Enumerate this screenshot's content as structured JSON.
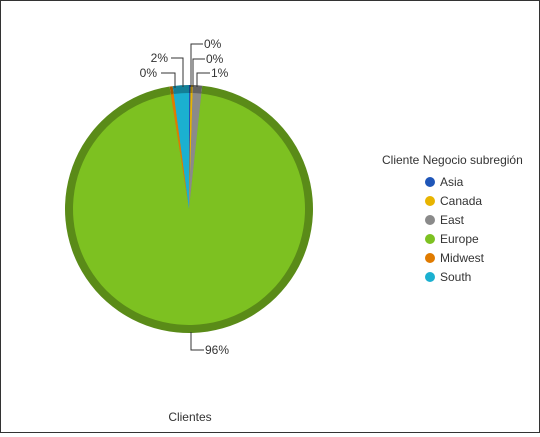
{
  "chart_data": {
    "type": "pie",
    "title": "",
    "category_label": "Clientes",
    "legend_title": "Cliente Negocio subregión",
    "legend_position": "right",
    "slices": [
      {
        "label": "Asia",
        "value": 0.2,
        "display": "0%",
        "color": "#1f56b8"
      },
      {
        "label": "Canada",
        "value": 0.3,
        "display": "0%",
        "color": "#e8b400"
      },
      {
        "label": "East",
        "value": 1.2,
        "display": "1%",
        "color": "#8a8a8a"
      },
      {
        "label": "Europe",
        "value": 95.8,
        "display": "96%",
        "color": "#7dc121"
      },
      {
        "label": "Midwest",
        "value": 0.4,
        "display": "0%",
        "color": "#e07b00"
      },
      {
        "label": "South",
        "value": 2.1,
        "display": "2%",
        "color": "#1bb0d0"
      }
    ]
  }
}
